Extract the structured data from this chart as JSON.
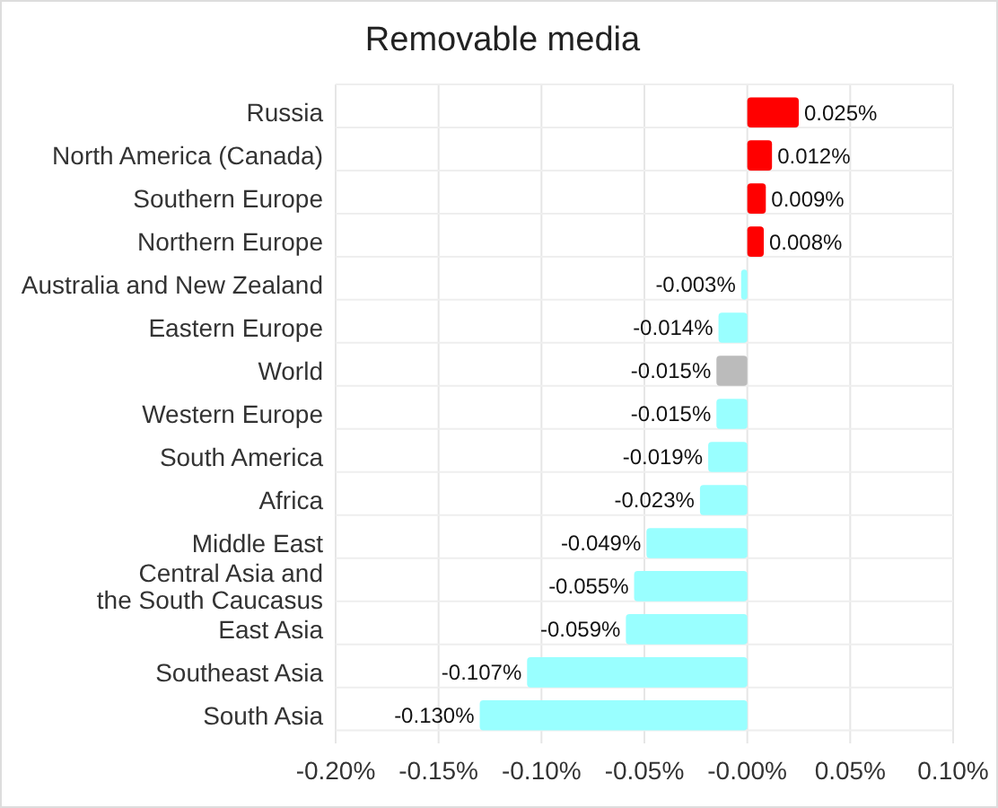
{
  "chart_data": {
    "type": "bar",
    "title": "Removable media",
    "orientation": "horizontal",
    "categories": [
      "Russia",
      "North America (Canada)",
      "Southern Europe",
      "Northern Europe",
      "Australia and New Zealand",
      "Eastern Europe",
      "World",
      "Western Europe",
      "South America",
      "Africa",
      "Middle East",
      "Central Asia and the South Caucasus",
      "East Asia",
      "Southeast Asia",
      "South Asia"
    ],
    "values": [
      0.025,
      0.012,
      0.009,
      0.008,
      -0.003,
      -0.014,
      -0.015,
      -0.015,
      -0.019,
      -0.023,
      -0.049,
      -0.055,
      -0.059,
      -0.107,
      -0.13
    ],
    "colors": [
      "#ff0000",
      "#ff0000",
      "#ff0000",
      "#ff0000",
      "#99ffff",
      "#99ffff",
      "#bbbbbb",
      "#99ffff",
      "#99ffff",
      "#99ffff",
      "#99ffff",
      "#99ffff",
      "#99ffff",
      "#99ffff",
      "#99ffff"
    ],
    "value_labels": [
      "0.025%",
      "0.012%",
      "0.009%",
      "0.008%",
      "-0.003%",
      "-0.014%",
      "-0.015%",
      "-0.015%",
      "-0.019%",
      "-0.023%",
      "-0.049%",
      "-0.055%",
      "-0.059%",
      "-0.107%",
      "-0.130%"
    ],
    "xlim": [
      -0.2,
      0.1
    ],
    "xticks": [
      {
        "value": -0.2,
        "label": "-0.20%"
      },
      {
        "value": -0.15,
        "label": "-0.15%"
      },
      {
        "value": -0.1,
        "label": "-0.10%"
      },
      {
        "value": -0.05,
        "label": "-0.05%"
      },
      {
        "value": 0,
        "label": "-0.00%"
      },
      {
        "value": 0.05,
        "label": "0.05%"
      },
      {
        "value": 0.1,
        "label": "0.10%"
      }
    ],
    "grid": true
  }
}
